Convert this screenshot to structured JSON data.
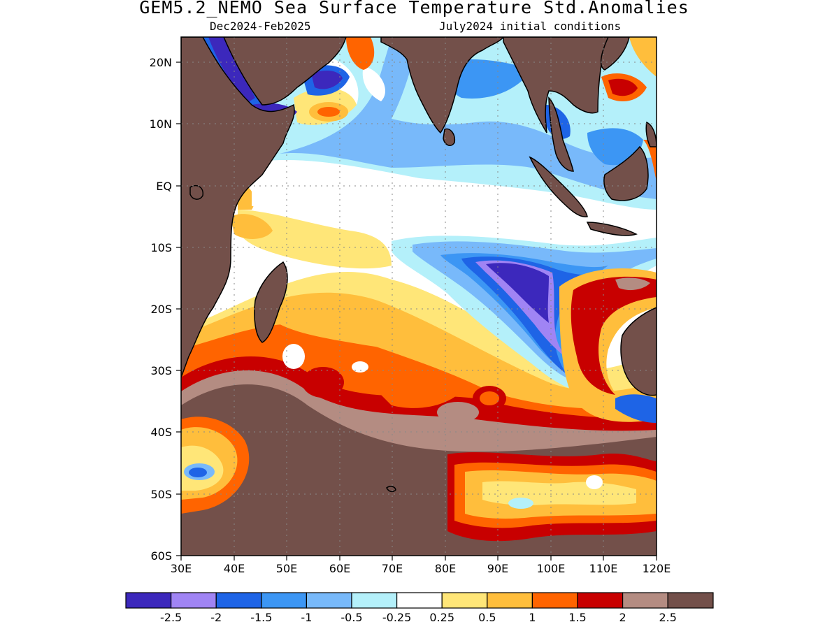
{
  "title": "GEM5.2_NEMO Sea Surface Temperature Std.Anomalies",
  "subtitle_left": "Dec2024-Feb2025",
  "subtitle_right": "July2024 initial conditions",
  "map": {
    "lon_range": [
      30,
      120
    ],
    "lat_range": [
      -60,
      24
    ],
    "lat_ticks": [
      "20N",
      "10N",
      "EQ",
      "10S",
      "20S",
      "30S",
      "40S",
      "50S",
      "60S"
    ],
    "lon_ticks": [
      "30E",
      "40E",
      "50E",
      "60E",
      "70E",
      "80E",
      "90E",
      "100E",
      "110E",
      "120E"
    ],
    "grid": "dotted",
    "land_color": "#73504a"
  },
  "colorbar": {
    "colors": [
      "#3c28bc",
      "#a084f4",
      "#1e64e6",
      "#3c96f4",
      "#78b9fa",
      "#b4f0fa",
      "#ffffff",
      "#ffe678",
      "#ffbe3c",
      "#ff6400",
      "#c80000",
      "#b48c82",
      "#73504a"
    ],
    "labels": [
      "-2.5",
      "-2",
      "-1.5",
      "-1",
      "-0.5",
      "-0.25",
      "0.25",
      "0.5",
      "1",
      "1.5",
      "2",
      "2.5"
    ]
  }
}
